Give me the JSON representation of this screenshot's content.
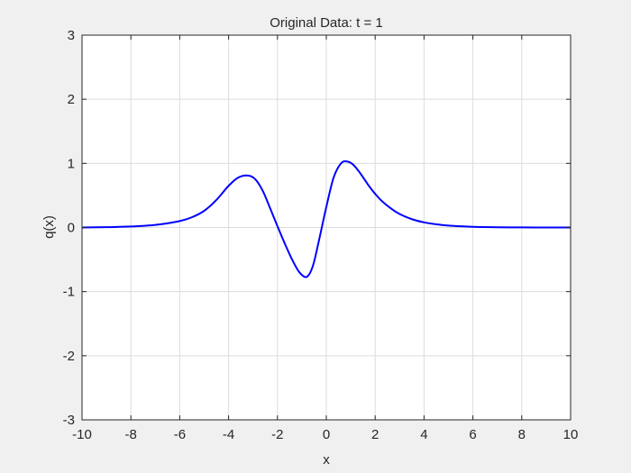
{
  "chart_data": {
    "type": "line",
    "title": "Original Data: t = 1",
    "xlabel": "x",
    "ylabel": "q(x)",
    "xlim": [
      -10,
      10
    ],
    "ylim": [
      -3,
      3
    ],
    "xticks": [
      -10,
      -8,
      -6,
      -4,
      -2,
      0,
      2,
      4,
      6,
      8,
      10
    ],
    "yticks": [
      -3,
      -2,
      -1,
      0,
      1,
      2,
      3
    ],
    "grid": true,
    "series": [
      {
        "color": "#0000ff",
        "x": [
          -10,
          -9,
          -8,
          -7,
          -6,
          -5.5,
          -5,
          -4.5,
          -4,
          -3.6,
          -3.2,
          -2.9,
          -2.6,
          -2.3,
          -2,
          -1.7,
          -1.4,
          -1.1,
          -0.8,
          -0.55,
          -0.3,
          0,
          0.3,
          0.6,
          0.85,
          1.1,
          1.4,
          1.8,
          2.2,
          2.6,
          3,
          3.5,
          4,
          4.5,
          5,
          6,
          7,
          8,
          9,
          10
        ],
        "y": [
          0,
          0.005,
          0.015,
          0.04,
          0.1,
          0.16,
          0.26,
          0.43,
          0.65,
          0.78,
          0.81,
          0.75,
          0.57,
          0.3,
          0.02,
          -0.25,
          -0.5,
          -0.7,
          -0.77,
          -0.6,
          -0.2,
          0.32,
          0.78,
          1.0,
          1.03,
          0.98,
          0.84,
          0.62,
          0.44,
          0.31,
          0.21,
          0.13,
          0.08,
          0.05,
          0.03,
          0.01,
          0.004,
          0.001,
          0,
          0
        ]
      }
    ]
  }
}
